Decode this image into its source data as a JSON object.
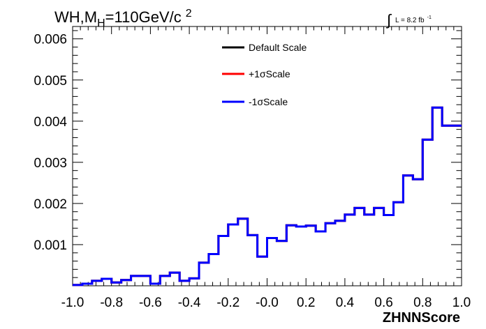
{
  "chart_data": {
    "type": "line",
    "step": true,
    "title": {
      "prefix": "WH,M",
      "subscript": "H",
      "suffix": "=110GeV/c",
      "superscript": "2"
    },
    "lumi": {
      "symbol": "∫",
      "text": "L = 8.2 fb",
      "superscript": "-1"
    },
    "xlabel": "ZHNNScore",
    "xlim": [
      -1.0,
      1.0
    ],
    "ylim": [
      0,
      0.0063
    ],
    "xticks": [
      "-1.0",
      "-0.8",
      "-0.6",
      "-0.4",
      "-0.2",
      "-0.0",
      "0.2",
      "0.4",
      "0.6",
      "0.8",
      "1.0"
    ],
    "xtick_values": [
      -1.0,
      -0.8,
      -0.6,
      -0.4,
      -0.2,
      0.0,
      0.2,
      0.4,
      0.6,
      0.8,
      1.0
    ],
    "yticks": [
      "0.001",
      "0.002",
      "0.003",
      "0.004",
      "0.005",
      "0.006"
    ],
    "ytick_values": [
      0.001,
      0.002,
      0.003,
      0.004,
      0.005,
      0.006
    ],
    "bin_edges": [
      -1.0,
      -0.95,
      -0.9,
      -0.85,
      -0.8,
      -0.75,
      -0.7,
      -0.65,
      -0.6,
      -0.55,
      -0.5,
      -0.45,
      -0.4,
      -0.35,
      -0.3,
      -0.25,
      -0.2,
      -0.15,
      -0.1,
      -0.05,
      0.0,
      0.05,
      0.1,
      0.15,
      0.2,
      0.25,
      0.3,
      0.35,
      0.4,
      0.45,
      0.5,
      0.55,
      0.6,
      0.65,
      0.7,
      0.75,
      0.8,
      0.85,
      0.9,
      0.95,
      1.0
    ],
    "series": [
      {
        "name": "Default Scale",
        "color": "#000000",
        "values": [
          2e-05,
          5e-05,
          0.00012,
          0.00017,
          8e-05,
          0.00014,
          0.00024,
          0.00024,
          5e-05,
          0.00024,
          0.00032,
          0.00012,
          0.00018,
          0.00056,
          0.00077,
          0.00121,
          0.00149,
          0.00163,
          0.00123,
          0.00071,
          0.00116,
          0.00109,
          0.00147,
          0.00144,
          0.00146,
          0.00132,
          0.00152,
          0.00158,
          0.00173,
          0.00189,
          0.00173,
          0.00189,
          0.00172,
          0.00203,
          0.00268,
          0.00259,
          0.00355,
          0.00433,
          0.00389,
          0.00389
        ]
      },
      {
        "name": "+1σScale",
        "color": "#ff0000",
        "values": [
          2e-05,
          5e-05,
          0.00012,
          0.00017,
          8e-05,
          0.00014,
          0.00024,
          0.00024,
          5e-05,
          0.00024,
          0.00032,
          0.00012,
          0.00018,
          0.00056,
          0.00077,
          0.00121,
          0.00149,
          0.00163,
          0.00123,
          0.00071,
          0.00116,
          0.00109,
          0.00147,
          0.00144,
          0.00146,
          0.00132,
          0.00152,
          0.00158,
          0.00173,
          0.00189,
          0.00173,
          0.00189,
          0.00172,
          0.00203,
          0.00268,
          0.00259,
          0.00355,
          0.00433,
          0.00389,
          0.00389
        ]
      },
      {
        "name": "-1σScale",
        "color": "#0000ff",
        "values": [
          2e-05,
          5e-05,
          0.00012,
          0.00017,
          8e-05,
          0.00014,
          0.00024,
          0.00024,
          5e-05,
          0.00024,
          0.00032,
          0.00012,
          0.00018,
          0.00056,
          0.00077,
          0.00121,
          0.00149,
          0.00163,
          0.00123,
          0.00071,
          0.00116,
          0.00109,
          0.00147,
          0.00144,
          0.00146,
          0.00132,
          0.00152,
          0.00158,
          0.00173,
          0.00189,
          0.00173,
          0.00189,
          0.00172,
          0.00203,
          0.00268,
          0.00259,
          0.00355,
          0.00433,
          0.00389,
          0.00389
        ]
      }
    ],
    "legend": {
      "placement": "top-center",
      "border": false
    },
    "grid": false
  }
}
